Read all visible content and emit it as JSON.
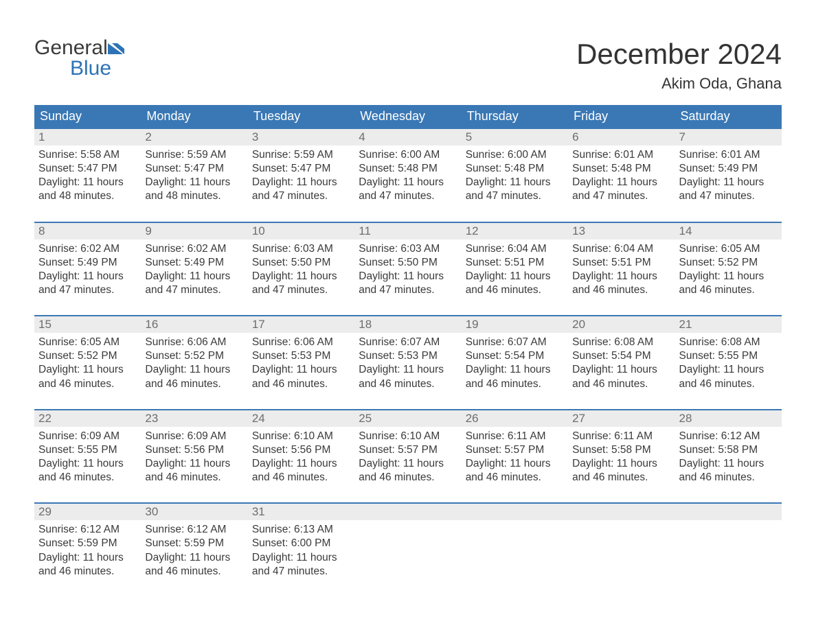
{
  "logo": {
    "word1": "General",
    "word2": "Blue"
  },
  "title": "December 2024",
  "location": "Akim Oda, Ghana",
  "colors": {
    "header_bg": "#3a78b5",
    "header_text": "#ffffff",
    "row_border": "#3a78b5",
    "daynum_bg": "#ececec",
    "daynum_text": "#6d6d6d",
    "body_text": "#3a3a3a",
    "logo_blue": "#2d73b5"
  },
  "day_headers": [
    "Sunday",
    "Monday",
    "Tuesday",
    "Wednesday",
    "Thursday",
    "Friday",
    "Saturday"
  ],
  "weeks": [
    [
      {
        "n": "1",
        "sunrise": "5:58 AM",
        "sunset": "5:47 PM",
        "daylight": "11 hours and 48 minutes."
      },
      {
        "n": "2",
        "sunrise": "5:59 AM",
        "sunset": "5:47 PM",
        "daylight": "11 hours and 48 minutes."
      },
      {
        "n": "3",
        "sunrise": "5:59 AM",
        "sunset": "5:47 PM",
        "daylight": "11 hours and 47 minutes."
      },
      {
        "n": "4",
        "sunrise": "6:00 AM",
        "sunset": "5:48 PM",
        "daylight": "11 hours and 47 minutes."
      },
      {
        "n": "5",
        "sunrise": "6:00 AM",
        "sunset": "5:48 PM",
        "daylight": "11 hours and 47 minutes."
      },
      {
        "n": "6",
        "sunrise": "6:01 AM",
        "sunset": "5:48 PM",
        "daylight": "11 hours and 47 minutes."
      },
      {
        "n": "7",
        "sunrise": "6:01 AM",
        "sunset": "5:49 PM",
        "daylight": "11 hours and 47 minutes."
      }
    ],
    [
      {
        "n": "8",
        "sunrise": "6:02 AM",
        "sunset": "5:49 PM",
        "daylight": "11 hours and 47 minutes."
      },
      {
        "n": "9",
        "sunrise": "6:02 AM",
        "sunset": "5:49 PM",
        "daylight": "11 hours and 47 minutes."
      },
      {
        "n": "10",
        "sunrise": "6:03 AM",
        "sunset": "5:50 PM",
        "daylight": "11 hours and 47 minutes."
      },
      {
        "n": "11",
        "sunrise": "6:03 AM",
        "sunset": "5:50 PM",
        "daylight": "11 hours and 47 minutes."
      },
      {
        "n": "12",
        "sunrise": "6:04 AM",
        "sunset": "5:51 PM",
        "daylight": "11 hours and 46 minutes."
      },
      {
        "n": "13",
        "sunrise": "6:04 AM",
        "sunset": "5:51 PM",
        "daylight": "11 hours and 46 minutes."
      },
      {
        "n": "14",
        "sunrise": "6:05 AM",
        "sunset": "5:52 PM",
        "daylight": "11 hours and 46 minutes."
      }
    ],
    [
      {
        "n": "15",
        "sunrise": "6:05 AM",
        "sunset": "5:52 PM",
        "daylight": "11 hours and 46 minutes."
      },
      {
        "n": "16",
        "sunrise": "6:06 AM",
        "sunset": "5:52 PM",
        "daylight": "11 hours and 46 minutes."
      },
      {
        "n": "17",
        "sunrise": "6:06 AM",
        "sunset": "5:53 PM",
        "daylight": "11 hours and 46 minutes."
      },
      {
        "n": "18",
        "sunrise": "6:07 AM",
        "sunset": "5:53 PM",
        "daylight": "11 hours and 46 minutes."
      },
      {
        "n": "19",
        "sunrise": "6:07 AM",
        "sunset": "5:54 PM",
        "daylight": "11 hours and 46 minutes."
      },
      {
        "n": "20",
        "sunrise": "6:08 AM",
        "sunset": "5:54 PM",
        "daylight": "11 hours and 46 minutes."
      },
      {
        "n": "21",
        "sunrise": "6:08 AM",
        "sunset": "5:55 PM",
        "daylight": "11 hours and 46 minutes."
      }
    ],
    [
      {
        "n": "22",
        "sunrise": "6:09 AM",
        "sunset": "5:55 PM",
        "daylight": "11 hours and 46 minutes."
      },
      {
        "n": "23",
        "sunrise": "6:09 AM",
        "sunset": "5:56 PM",
        "daylight": "11 hours and 46 minutes."
      },
      {
        "n": "24",
        "sunrise": "6:10 AM",
        "sunset": "5:56 PM",
        "daylight": "11 hours and 46 minutes."
      },
      {
        "n": "25",
        "sunrise": "6:10 AM",
        "sunset": "5:57 PM",
        "daylight": "11 hours and 46 minutes."
      },
      {
        "n": "26",
        "sunrise": "6:11 AM",
        "sunset": "5:57 PM",
        "daylight": "11 hours and 46 minutes."
      },
      {
        "n": "27",
        "sunrise": "6:11 AM",
        "sunset": "5:58 PM",
        "daylight": "11 hours and 46 minutes."
      },
      {
        "n": "28",
        "sunrise": "6:12 AM",
        "sunset": "5:58 PM",
        "daylight": "11 hours and 46 minutes."
      }
    ],
    [
      {
        "n": "29",
        "sunrise": "6:12 AM",
        "sunset": "5:59 PM",
        "daylight": "11 hours and 46 minutes."
      },
      {
        "n": "30",
        "sunrise": "6:12 AM",
        "sunset": "5:59 PM",
        "daylight": "11 hours and 46 minutes."
      },
      {
        "n": "31",
        "sunrise": "6:13 AM",
        "sunset": "6:00 PM",
        "daylight": "11 hours and 47 minutes."
      },
      null,
      null,
      null,
      null
    ]
  ],
  "labels": {
    "sunrise": "Sunrise:",
    "sunset": "Sunset:",
    "daylight": "Daylight:"
  }
}
